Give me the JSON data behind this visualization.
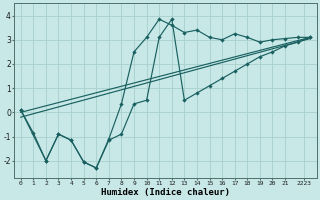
{
  "xlabel": "Humidex (Indice chaleur)",
  "bg_color": "#c8e8e8",
  "grid_color": "#a8d0cc",
  "line_color": "#1a6060",
  "xlim": [
    -0.5,
    23.5
  ],
  "ylim": [
    -2.7,
    4.5
  ],
  "xtick_labels": [
    "0",
    "1",
    "2",
    "3",
    "4",
    "5",
    "6",
    "7",
    "8",
    "9",
    "10",
    "11",
    "12",
    "13",
    "14",
    "15",
    "16",
    "17",
    "18",
    "19",
    "20",
    "21",
    "2223"
  ],
  "xtick_vals": [
    0,
    1,
    2,
    3,
    4,
    5,
    6,
    7,
    8,
    9,
    10,
    11,
    12,
    13,
    14,
    15,
    16,
    17,
    18,
    19,
    20,
    21,
    22.5
  ],
  "yticks": [
    -2,
    -1,
    0,
    1,
    2,
    3,
    4
  ],
  "line1_x": [
    0,
    1,
    2,
    3,
    4,
    5,
    6,
    7,
    8,
    9,
    10,
    11,
    12,
    13,
    14,
    15,
    16,
    17,
    18,
    19,
    20,
    21,
    22,
    23
  ],
  "line1_y": [
    0.1,
    -0.85,
    -2.0,
    -0.9,
    -1.15,
    -2.05,
    -2.3,
    -1.1,
    0.35,
    2.5,
    3.1,
    3.85,
    3.6,
    3.3,
    3.4,
    3.1,
    3.0,
    3.25,
    3.1,
    2.9,
    3.0,
    3.05,
    3.1,
    3.1
  ],
  "line2_x": [
    0,
    2,
    3,
    4,
    5,
    6,
    7,
    8,
    9,
    10,
    11,
    12,
    13,
    14,
    15,
    16,
    17,
    18,
    19,
    20,
    21,
    22,
    23
  ],
  "line2_y": [
    0.1,
    -2.0,
    -0.9,
    -1.15,
    -2.05,
    -2.3,
    -1.15,
    -0.9,
    0.35,
    0.5,
    3.1,
    3.85,
    0.5,
    0.8,
    1.1,
    1.4,
    1.7,
    2.0,
    2.3,
    2.5,
    2.75,
    2.9,
    3.1
  ],
  "line3_x": [
    0,
    23
  ],
  "line3_y": [
    0.0,
    3.1
  ],
  "line4_x": [
    0,
    23
  ],
  "line4_y": [
    -0.2,
    3.05
  ]
}
